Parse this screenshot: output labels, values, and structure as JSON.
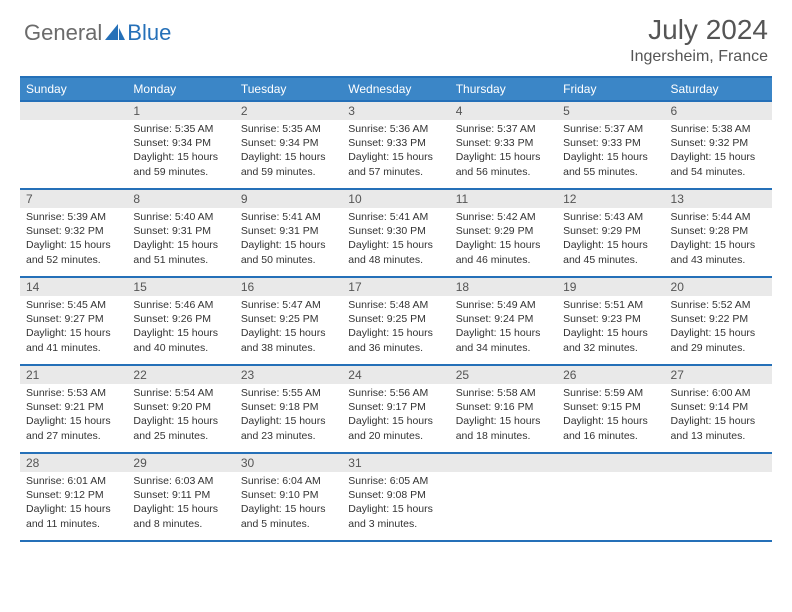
{
  "brand": {
    "part1": "General",
    "part2": "Blue"
  },
  "title": "July 2024",
  "location": "Ingersheim, France",
  "colors": {
    "header_bg": "#3b86c7",
    "border": "#2570b8",
    "daynum_bg": "#e9e9e9",
    "text_muted": "#555555",
    "text_body": "#333333"
  },
  "weekdays": [
    "Sunday",
    "Monday",
    "Tuesday",
    "Wednesday",
    "Thursday",
    "Friday",
    "Saturday"
  ],
  "weeks": [
    [
      null,
      {
        "n": "1",
        "sr": "5:35 AM",
        "ss": "9:34 PM",
        "dl": "15 hours and 59 minutes."
      },
      {
        "n": "2",
        "sr": "5:35 AM",
        "ss": "9:34 PM",
        "dl": "15 hours and 59 minutes."
      },
      {
        "n": "3",
        "sr": "5:36 AM",
        "ss": "9:33 PM",
        "dl": "15 hours and 57 minutes."
      },
      {
        "n": "4",
        "sr": "5:37 AM",
        "ss": "9:33 PM",
        "dl": "15 hours and 56 minutes."
      },
      {
        "n": "5",
        "sr": "5:37 AM",
        "ss": "9:33 PM",
        "dl": "15 hours and 55 minutes."
      },
      {
        "n": "6",
        "sr": "5:38 AM",
        "ss": "9:32 PM",
        "dl": "15 hours and 54 minutes."
      }
    ],
    [
      {
        "n": "7",
        "sr": "5:39 AM",
        "ss": "9:32 PM",
        "dl": "15 hours and 52 minutes."
      },
      {
        "n": "8",
        "sr": "5:40 AM",
        "ss": "9:31 PM",
        "dl": "15 hours and 51 minutes."
      },
      {
        "n": "9",
        "sr": "5:41 AM",
        "ss": "9:31 PM",
        "dl": "15 hours and 50 minutes."
      },
      {
        "n": "10",
        "sr": "5:41 AM",
        "ss": "9:30 PM",
        "dl": "15 hours and 48 minutes."
      },
      {
        "n": "11",
        "sr": "5:42 AM",
        "ss": "9:29 PM",
        "dl": "15 hours and 46 minutes."
      },
      {
        "n": "12",
        "sr": "5:43 AM",
        "ss": "9:29 PM",
        "dl": "15 hours and 45 minutes."
      },
      {
        "n": "13",
        "sr": "5:44 AM",
        "ss": "9:28 PM",
        "dl": "15 hours and 43 minutes."
      }
    ],
    [
      {
        "n": "14",
        "sr": "5:45 AM",
        "ss": "9:27 PM",
        "dl": "15 hours and 41 minutes."
      },
      {
        "n": "15",
        "sr": "5:46 AM",
        "ss": "9:26 PM",
        "dl": "15 hours and 40 minutes."
      },
      {
        "n": "16",
        "sr": "5:47 AM",
        "ss": "9:25 PM",
        "dl": "15 hours and 38 minutes."
      },
      {
        "n": "17",
        "sr": "5:48 AM",
        "ss": "9:25 PM",
        "dl": "15 hours and 36 minutes."
      },
      {
        "n": "18",
        "sr": "5:49 AM",
        "ss": "9:24 PM",
        "dl": "15 hours and 34 minutes."
      },
      {
        "n": "19",
        "sr": "5:51 AM",
        "ss": "9:23 PM",
        "dl": "15 hours and 32 minutes."
      },
      {
        "n": "20",
        "sr": "5:52 AM",
        "ss": "9:22 PM",
        "dl": "15 hours and 29 minutes."
      }
    ],
    [
      {
        "n": "21",
        "sr": "5:53 AM",
        "ss": "9:21 PM",
        "dl": "15 hours and 27 minutes."
      },
      {
        "n": "22",
        "sr": "5:54 AM",
        "ss": "9:20 PM",
        "dl": "15 hours and 25 minutes."
      },
      {
        "n": "23",
        "sr": "5:55 AM",
        "ss": "9:18 PM",
        "dl": "15 hours and 23 minutes."
      },
      {
        "n": "24",
        "sr": "5:56 AM",
        "ss": "9:17 PM",
        "dl": "15 hours and 20 minutes."
      },
      {
        "n": "25",
        "sr": "5:58 AM",
        "ss": "9:16 PM",
        "dl": "15 hours and 18 minutes."
      },
      {
        "n": "26",
        "sr": "5:59 AM",
        "ss": "9:15 PM",
        "dl": "15 hours and 16 minutes."
      },
      {
        "n": "27",
        "sr": "6:00 AM",
        "ss": "9:14 PM",
        "dl": "15 hours and 13 minutes."
      }
    ],
    [
      {
        "n": "28",
        "sr": "6:01 AM",
        "ss": "9:12 PM",
        "dl": "15 hours and 11 minutes."
      },
      {
        "n": "29",
        "sr": "6:03 AM",
        "ss": "9:11 PM",
        "dl": "15 hours and 8 minutes."
      },
      {
        "n": "30",
        "sr": "6:04 AM",
        "ss": "9:10 PM",
        "dl": "15 hours and 5 minutes."
      },
      {
        "n": "31",
        "sr": "6:05 AM",
        "ss": "9:08 PM",
        "dl": "15 hours and 3 minutes."
      },
      null,
      null,
      null
    ]
  ],
  "labels": {
    "sunrise": "Sunrise:",
    "sunset": "Sunset:",
    "daylight": "Daylight:"
  }
}
